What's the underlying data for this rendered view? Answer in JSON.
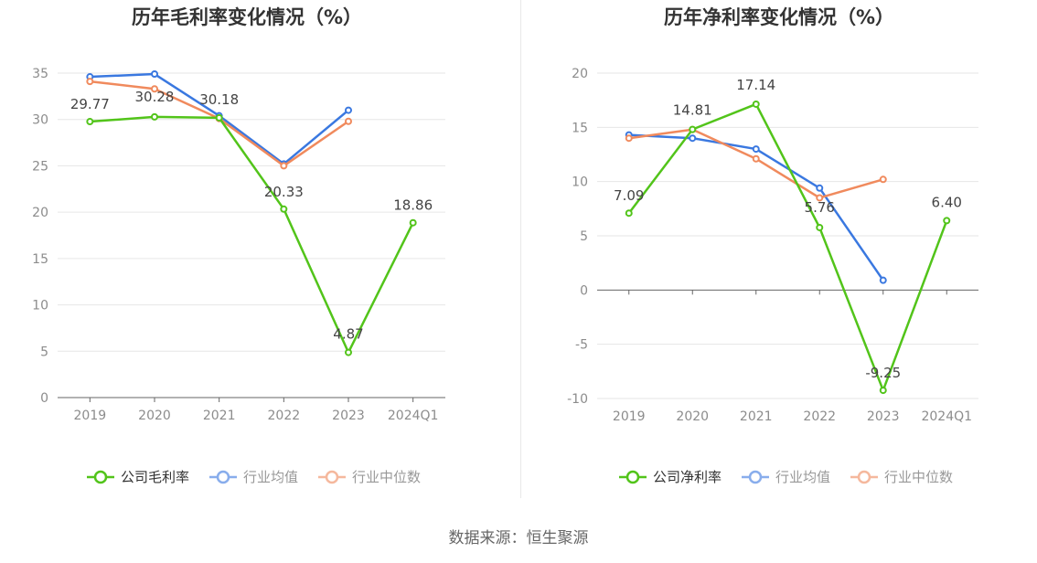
{
  "source": "数据来源：恒生聚源",
  "colors": {
    "company": "#52c41a",
    "industry_avg": "#3a78e0",
    "industry_median": "#f08a5d",
    "grid": "#e6e6e6",
    "axis": "#666666",
    "tick_text": "#8c8c8c",
    "label_text": "#444444",
    "title_text": "#333333"
  },
  "chart_data": [
    {
      "type": "line",
      "title": "历年毛利率变化情况（%）",
      "categories": [
        "2019",
        "2020",
        "2021",
        "2022",
        "2023",
        "2024Q1"
      ],
      "y_ticks": [
        "0",
        "5",
        "10",
        "15",
        "20",
        "25",
        "30",
        "35"
      ],
      "ylim": [
        0,
        35
      ],
      "grid": true,
      "legend_position": "bottom",
      "series": [
        {
          "name": "公司毛利率",
          "key": "company",
          "values": [
            29.77,
            30.28,
            30.18,
            20.33,
            4.87,
            18.86
          ],
          "labels": [
            "29.77",
            "30.28",
            "30.18",
            "20.33",
            "4.87",
            "18.86"
          ]
        },
        {
          "name": "行业均值",
          "key": "industry_avg",
          "values": [
            34.6,
            34.9,
            30.4,
            25.2,
            31.0,
            null
          ]
        },
        {
          "name": "行业中位数",
          "key": "industry_median",
          "values": [
            34.1,
            33.3,
            30.1,
            25.0,
            29.8,
            null
          ]
        }
      ]
    },
    {
      "type": "line",
      "title": "历年净利率变化情况（%）",
      "categories": [
        "2019",
        "2020",
        "2021",
        "2022",
        "2023",
        "2024Q1"
      ],
      "y_ticks": [
        "-10",
        "-5",
        "0",
        "5",
        "10",
        "15",
        "20"
      ],
      "ylim": [
        -10,
        20
      ],
      "grid": true,
      "legend_position": "bottom",
      "series": [
        {
          "name": "公司净利率",
          "key": "company",
          "values": [
            7.09,
            14.81,
            17.14,
            5.76,
            -9.25,
            6.4
          ],
          "labels": [
            "7.09",
            "14.81",
            "17.14",
            "5.76",
            "-9.25",
            "6.40"
          ]
        },
        {
          "name": "行业均值",
          "key": "industry_avg",
          "values": [
            14.3,
            14.0,
            13.0,
            9.4,
            0.9,
            null
          ]
        },
        {
          "name": "行业中位数",
          "key": "industry_median",
          "values": [
            14.0,
            14.8,
            12.1,
            8.5,
            10.2,
            null
          ]
        }
      ]
    }
  ]
}
